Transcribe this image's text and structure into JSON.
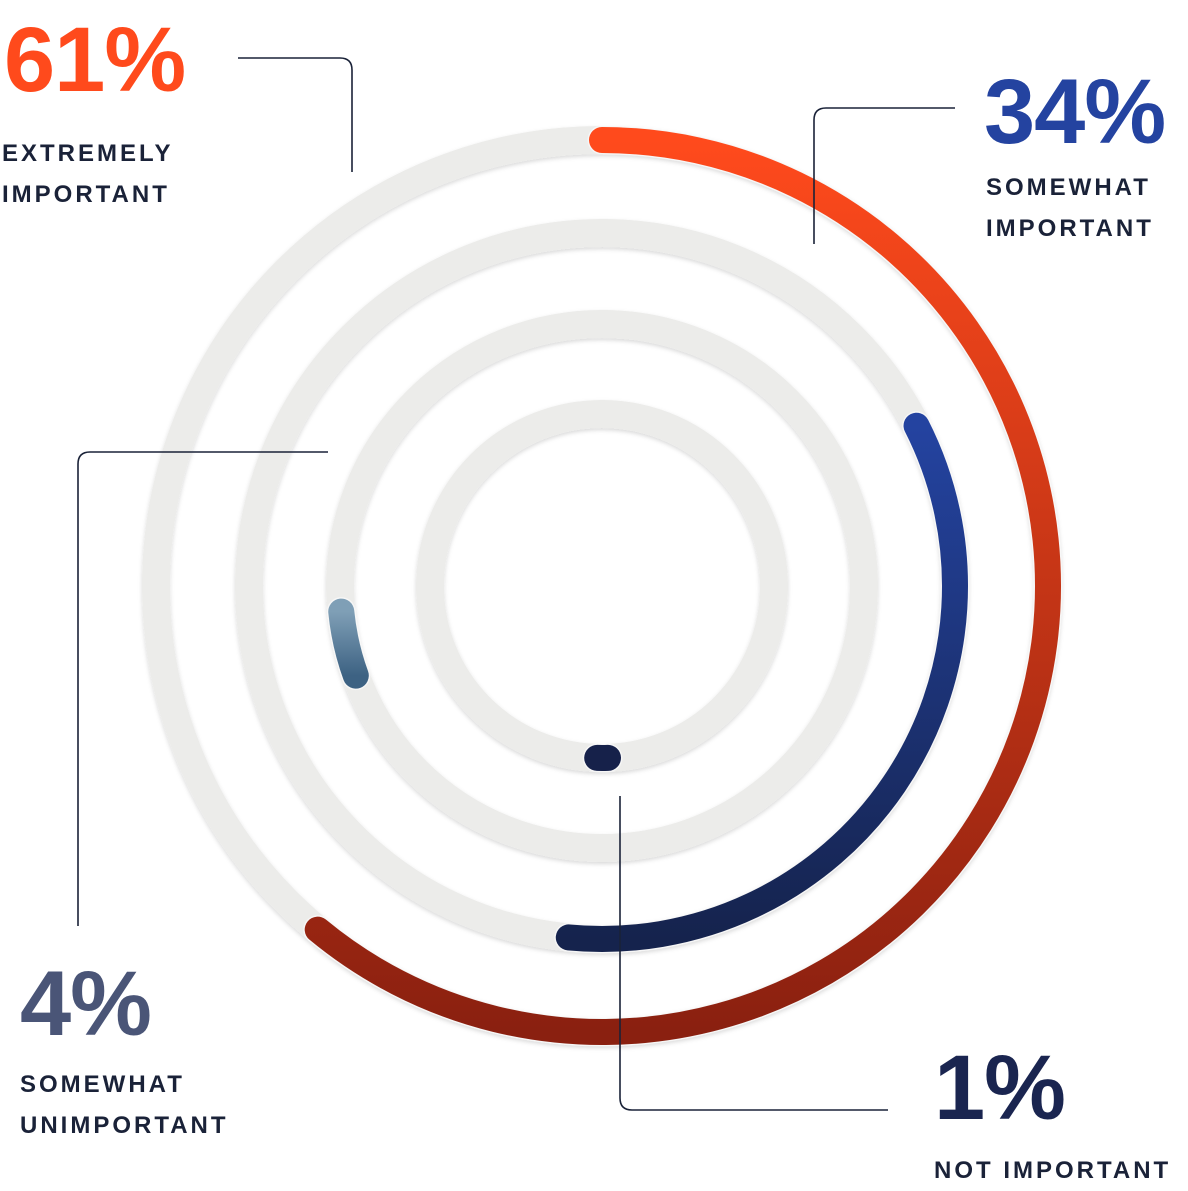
{
  "chart_data": {
    "type": "radial-bar",
    "series": [
      {
        "value": 61,
        "value_label": "61%",
        "label_lines": [
          "EXTREMELY",
          "IMPORTANT"
        ],
        "color": "#ff4a1c",
        "color_end": "#8a2010"
      },
      {
        "value": 34,
        "value_label": "34%",
        "label_lines": [
          "SOMEWHAT",
          "IMPORTANT"
        ],
        "color": "#2443a0",
        "color_end": "#15234d"
      },
      {
        "value": 4,
        "value_label": "4%",
        "label_lines": [
          "SOMEWHAT",
          "UNIMPORTANT"
        ],
        "color": "#7f9fb6",
        "color_end": "#3d6283"
      },
      {
        "value": 1,
        "value_label": "1%",
        "label_lines": [
          "NOT IMPORTANT"
        ],
        "color": "#16214a",
        "color_end": "#16214a"
      }
    ]
  },
  "colors": {
    "track": "#ececea",
    "leader": "#1a2238",
    "pct_extremely": "#ff4a1c",
    "pct_somewhat": "#2443a0",
    "pct_unimportant": "#4a5577",
    "pct_not": "#1a2550"
  }
}
